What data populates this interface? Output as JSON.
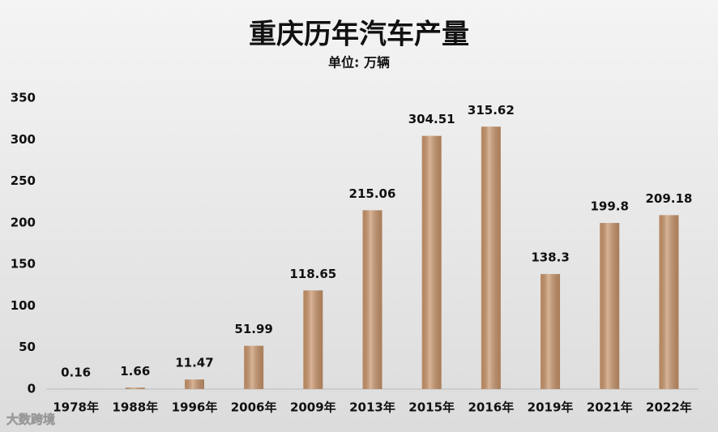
{
  "chart_data": {
    "type": "bar",
    "title": "重庆历年汽车产量",
    "subtitle": "单位: 万辆",
    "categories": [
      "1978年",
      "1988年",
      "1996年",
      "2006年",
      "2009年",
      "2013年",
      "2015年",
      "2016年",
      "2019年",
      "2021年",
      "2022年"
    ],
    "values": [
      0.16,
      1.66,
      11.47,
      51.99,
      118.65,
      215.06,
      304.51,
      315.62,
      138.3,
      199.8,
      209.18
    ],
    "color": "#c8946a",
    "ylim": [
      0,
      350
    ],
    "yticks": [
      0,
      50,
      100,
      150,
      200,
      250,
      300,
      350
    ],
    "grid": false,
    "watermark": "大数跨境"
  }
}
